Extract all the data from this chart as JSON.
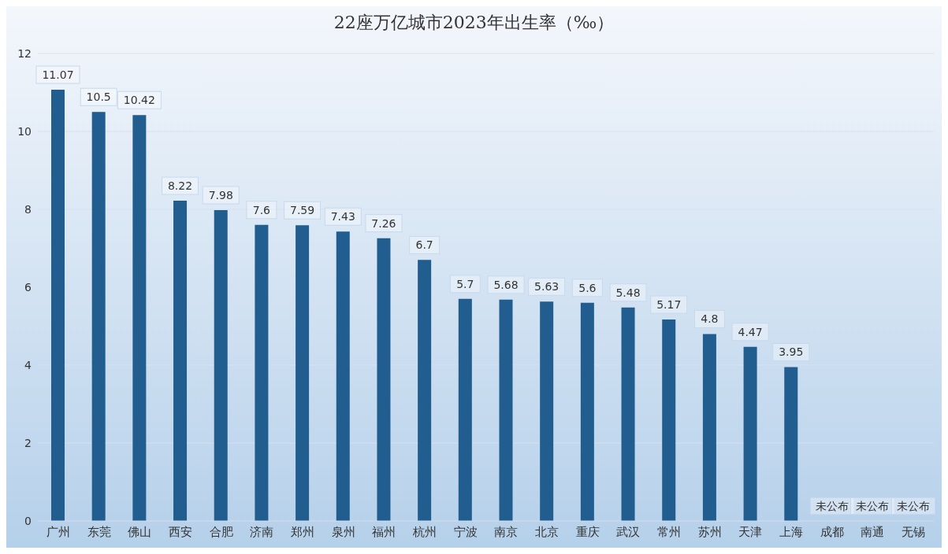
{
  "chart_data": {
    "type": "bar",
    "title": "22座万亿城市2023年出生率（‰）",
    "categories": [
      "广州",
      "东莞",
      "佛山",
      "西安",
      "合肥",
      "济南",
      "郑州",
      "泉州",
      "福州",
      "杭州",
      "宁波",
      "南京",
      "北京",
      "重庆",
      "武汉",
      "常州",
      "苏州",
      "天津",
      "上海",
      "成都",
      "南通",
      "无锡"
    ],
    "values": [
      11.07,
      10.5,
      10.42,
      8.22,
      7.98,
      7.6,
      7.59,
      7.43,
      7.26,
      6.7,
      5.7,
      5.68,
      5.63,
      5.6,
      5.48,
      5.17,
      4.8,
      4.47,
      3.95,
      null,
      null,
      null
    ],
    "value_labels": [
      "11.07",
      "10.5",
      "10.42",
      "8.22",
      "7.98",
      "7.6",
      "7.59",
      "7.43",
      "7.26",
      "6.7",
      "5.7",
      "5.68",
      "5.63",
      "5.6",
      "5.48",
      "5.17",
      "4.8",
      "4.47",
      "3.95",
      "未公布",
      "未公布",
      "未公布"
    ],
    "color": "#215d8f",
    "ylim": [
      0,
      12
    ],
    "yticks": [
      0,
      2,
      4,
      6,
      8,
      10,
      12
    ],
    "grid": "y"
  }
}
